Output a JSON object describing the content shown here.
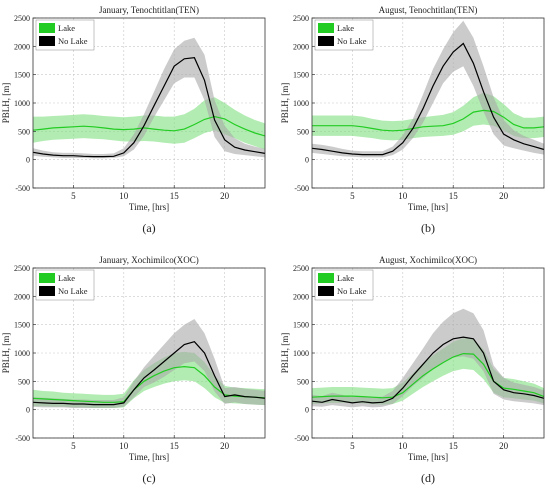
{
  "chart_data": [
    {
      "type": "line",
      "panel_label": "(a)",
      "title": "January, Tenochtitlan(TEN)",
      "xlabel": "Time, [hrs]",
      "ylabel": "PBLH, [m]",
      "xlim": [
        1,
        24
      ],
      "ylim": [
        -500,
        2500
      ],
      "xticks": [
        5,
        10,
        15,
        20
      ],
      "yticks": [
        -500,
        0,
        500,
        1000,
        1500,
        2000,
        2500
      ],
      "grid": true,
      "legend_position": "top-left",
      "x": [
        1,
        2,
        3,
        4,
        5,
        6,
        7,
        8,
        9,
        10,
        11,
        12,
        13,
        14,
        15,
        16,
        17,
        18,
        19,
        20,
        21,
        22,
        23,
        24
      ],
      "series": [
        {
          "name": "Lake",
          "color": "#22cc22",
          "band_color": "#7fe07f",
          "values": [
            520,
            540,
            560,
            570,
            580,
            590,
            580,
            560,
            540,
            530,
            540,
            560,
            540,
            520,
            510,
            540,
            620,
            710,
            760,
            720,
            620,
            540,
            470,
            420
          ],
          "lower": [
            300,
            330,
            350,
            360,
            370,
            380,
            370,
            360,
            340,
            320,
            320,
            330,
            320,
            300,
            280,
            300,
            380,
            470,
            520,
            450,
            380,
            300,
            240,
            180
          ],
          "upper": [
            760,
            760,
            770,
            780,
            790,
            800,
            790,
            770,
            760,
            750,
            760,
            780,
            780,
            760,
            760,
            800,
            900,
            1050,
            1100,
            1000,
            880,
            780,
            700,
            640
          ]
        },
        {
          "name": "No Lake",
          "color": "#000000",
          "band_color": "#a8a8a8",
          "values": [
            130,
            100,
            80,
            70,
            70,
            60,
            55,
            55,
            60,
            120,
            300,
            600,
            950,
            1300,
            1650,
            1780,
            1800,
            1400,
            700,
            350,
            220,
            170,
            140,
            110
          ],
          "lower": [
            70,
            50,
            40,
            30,
            30,
            30,
            25,
            25,
            30,
            60,
            180,
            420,
            750,
            1050,
            1350,
            1450,
            1450,
            1050,
            400,
            150,
            100,
            80,
            60,
            40
          ],
          "upper": [
            200,
            160,
            130,
            120,
            120,
            110,
            100,
            100,
            110,
            200,
            450,
            800,
            1200,
            1600,
            1950,
            2100,
            2150,
            1850,
            1050,
            600,
            380,
            280,
            230,
            190
          ]
        }
      ]
    },
    {
      "type": "line",
      "panel_label": "(b)",
      "title": "August, Tenochtitlan(TEN)",
      "xlabel": "Time, [hrs]",
      "ylabel": "PBLH, [m]",
      "xlim": [
        1,
        24
      ],
      "ylim": [
        -500,
        2500
      ],
      "xticks": [
        5,
        10,
        15,
        20
      ],
      "yticks": [
        -500,
        0,
        500,
        1000,
        1500,
        2000,
        2500
      ],
      "grid": true,
      "legend_position": "top-left",
      "x": [
        1,
        2,
        3,
        4,
        5,
        6,
        7,
        8,
        9,
        10,
        11,
        12,
        13,
        14,
        15,
        16,
        17,
        18,
        19,
        20,
        21,
        22,
        23,
        24
      ],
      "series": [
        {
          "name": "Lake",
          "color": "#22cc22",
          "band_color": "#7fe07f",
          "values": [
            600,
            600,
            600,
            600,
            600,
            580,
            550,
            520,
            510,
            520,
            550,
            580,
            590,
            600,
            640,
            720,
            840,
            870,
            850,
            750,
            620,
            560,
            560,
            580
          ],
          "lower": [
            420,
            420,
            420,
            420,
            420,
            400,
            380,
            350,
            340,
            350,
            380,
            400,
            410,
            420,
            440,
            500,
            600,
            620,
            600,
            520,
            420,
            380,
            380,
            400
          ],
          "upper": [
            780,
            780,
            780,
            780,
            780,
            760,
            720,
            690,
            680,
            690,
            720,
            750,
            770,
            790,
            840,
            950,
            1100,
            1180,
            1120,
            980,
            820,
            740,
            740,
            760
          ]
        },
        {
          "name": "No Lake",
          "color": "#000000",
          "band_color": "#a8a8a8",
          "values": [
            200,
            180,
            150,
            120,
            100,
            90,
            90,
            90,
            150,
            300,
            550,
            900,
            1300,
            1650,
            1900,
            2050,
            1700,
            1200,
            750,
            450,
            350,
            280,
            230,
            180
          ],
          "lower": [
            120,
            100,
            80,
            60,
            50,
            40,
            40,
            40,
            80,
            180,
            380,
            650,
            1000,
            1350,
            1550,
            1650,
            1300,
            850,
            450,
            250,
            200,
            160,
            120,
            90
          ],
          "upper": [
            280,
            260,
            230,
            190,
            160,
            150,
            150,
            150,
            230,
            430,
            720,
            1150,
            1600,
            1950,
            2250,
            2450,
            2150,
            1650,
            1100,
            700,
            520,
            420,
            350,
            280
          ]
        }
      ]
    },
    {
      "type": "line",
      "panel_label": "(c)",
      "title": "January, Xochimilco(XOC)",
      "xlabel": "Time, [hrs]",
      "ylabel": "PBLH, [m]",
      "xlim": [
        1,
        24
      ],
      "ylim": [
        -500,
        2500
      ],
      "xticks": [
        5,
        10,
        15,
        20
      ],
      "yticks": [
        -500,
        0,
        500,
        1000,
        1500,
        2000,
        2500
      ],
      "grid": true,
      "legend_position": "top-left",
      "x": [
        1,
        2,
        3,
        4,
        5,
        6,
        7,
        8,
        9,
        10,
        11,
        12,
        13,
        14,
        15,
        16,
        17,
        18,
        19,
        20,
        21,
        22,
        23,
        24
      ],
      "series": [
        {
          "name": "Lake",
          "color": "#22cc22",
          "band_color": "#7fe07f",
          "values": [
            200,
            190,
            180,
            170,
            160,
            150,
            140,
            130,
            130,
            140,
            350,
            500,
            600,
            680,
            740,
            760,
            740,
            600,
            400,
            260,
            240,
            230,
            220,
            210
          ],
          "lower": [
            60,
            60,
            50,
            50,
            40,
            40,
            30,
            30,
            30,
            40,
            200,
            330,
            400,
            460,
            500,
            520,
            500,
            380,
            220,
            120,
            110,
            100,
            90,
            80
          ],
          "upper": [
            350,
            330,
            320,
            300,
            290,
            280,
            270,
            260,
            260,
            280,
            520,
            700,
            820,
            920,
            1000,
            1020,
            1000,
            840,
            600,
            420,
            390,
            380,
            370,
            360
          ]
        },
        {
          "name": "No Lake",
          "color": "#000000",
          "band_color": "#a8a8a8",
          "values": [
            130,
            120,
            110,
            110,
            100,
            100,
            90,
            90,
            90,
            120,
            350,
            560,
            700,
            850,
            1000,
            1150,
            1200,
            1000,
            600,
            230,
            260,
            230,
            220,
            200
          ],
          "lower": [
            50,
            40,
            40,
            40,
            30,
            30,
            30,
            30,
            30,
            50,
            220,
            400,
            480,
            580,
            700,
            820,
            850,
            680,
            320,
            100,
            130,
            100,
            90,
            80
          ],
          "upper": [
            220,
            210,
            200,
            190,
            180,
            180,
            170,
            170,
            170,
            220,
            500,
            750,
            950,
            1150,
            1350,
            1500,
            1600,
            1350,
            900,
            380,
            400,
            370,
            350,
            330
          ]
        }
      ]
    },
    {
      "type": "line",
      "panel_label": "(d)",
      "title": "August, Xochimilco(XOC)",
      "xlabel": "Time, [hrs]",
      "ylabel": "PBLH, [m]",
      "xlim": [
        1,
        24
      ],
      "ylim": [
        -500,
        2500
      ],
      "xticks": [
        5,
        10,
        15,
        20
      ],
      "yticks": [
        -500,
        0,
        500,
        1000,
        1500,
        2000,
        2500
      ],
      "grid": true,
      "legend_position": "top-left",
      "x": [
        1,
        2,
        3,
        4,
        5,
        6,
        7,
        8,
        9,
        10,
        11,
        12,
        13,
        14,
        15,
        16,
        17,
        18,
        19,
        20,
        21,
        22,
        23,
        24
      ],
      "series": [
        {
          "name": "Lake",
          "color": "#22cc22",
          "band_color": "#7fe07f",
          "values": [
            220,
            230,
            240,
            240,
            240,
            230,
            220,
            210,
            220,
            300,
            450,
            600,
            720,
            830,
            930,
            990,
            980,
            800,
            500,
            380,
            360,
            330,
            300,
            230
          ],
          "lower": [
            100,
            110,
            120,
            120,
            120,
            110,
            100,
            90,
            100,
            160,
            280,
            400,
            500,
            600,
            680,
            720,
            700,
            540,
            300,
            220,
            200,
            180,
            160,
            110
          ],
          "upper": [
            380,
            390,
            400,
            400,
            400,
            390,
            380,
            370,
            380,
            480,
            640,
            820,
            960,
            1080,
            1200,
            1260,
            1250,
            1060,
            720,
            560,
            540,
            500,
            460,
            380
          ]
        },
        {
          "name": "No Lake",
          "color": "#000000",
          "band_color": "#a8a8a8",
          "values": [
            150,
            130,
            180,
            150,
            120,
            140,
            120,
            130,
            200,
            380,
            600,
            800,
            1000,
            1150,
            1250,
            1280,
            1250,
            1000,
            500,
            350,
            300,
            280,
            250,
            200
          ],
          "lower": [
            60,
            50,
            80,
            60,
            40,
            60,
            40,
            50,
            100,
            240,
            420,
            560,
            720,
            840,
            920,
            940,
            900,
            680,
            280,
            180,
            150,
            130,
            110,
            80
          ],
          "upper": [
            260,
            240,
            300,
            260,
            220,
            240,
            220,
            230,
            330,
            560,
            820,
            1080,
            1350,
            1550,
            1700,
            1780,
            1700,
            1400,
            780,
            560,
            480,
            440,
            400,
            340
          ]
        }
      ]
    }
  ]
}
